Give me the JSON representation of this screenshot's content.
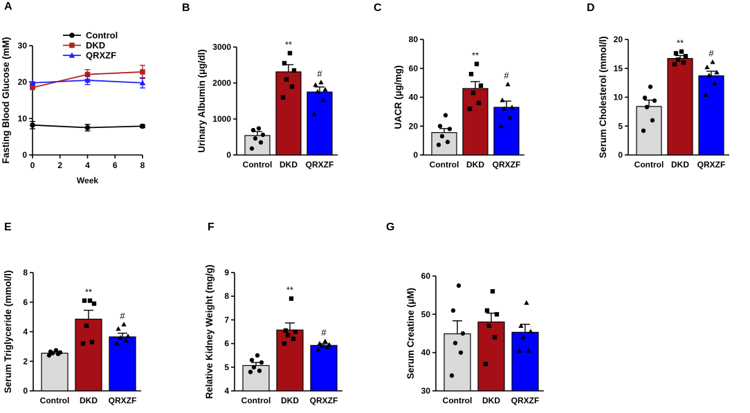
{
  "colors": {
    "control": "#d9d9d9",
    "dkd": "#a50f15",
    "qrxzf": "#0000ff",
    "axis": "#000000",
    "line_control": "#000000",
    "line_dkd": "#b22222",
    "line_qrxzf": "#1f1fff"
  },
  "chart_data": [
    {
      "panel": "A",
      "type": "line",
      "ylabel": "Fasting Blood Glucose (mM)",
      "xlabel": "Week",
      "x": [
        0,
        4,
        8
      ],
      "xticks": [
        "0",
        "2",
        "4",
        "6",
        "8"
      ],
      "xlim": [
        0,
        8
      ],
      "ylim": [
        0,
        30
      ],
      "yticks": [
        "0",
        "10",
        "20",
        "30"
      ],
      "series": [
        {
          "name": "Control",
          "marker": "circle",
          "color_key": "line_control",
          "values": [
            8.2,
            7.5,
            7.9
          ],
          "errors": [
            1.0,
            0.9,
            0.4
          ]
        },
        {
          "name": "DKD",
          "marker": "square",
          "color_key": "line_dkd",
          "values": [
            18.5,
            22.1,
            22.8
          ],
          "errors": [
            0.4,
            1.3,
            1.8
          ]
        },
        {
          "name": "QRXZF",
          "marker": "triangle",
          "color_key": "line_qrxzf",
          "values": [
            19.8,
            20.5,
            19.8
          ],
          "errors": [
            0.3,
            1.2,
            1.4
          ]
        }
      ]
    },
    {
      "panel": "B",
      "type": "bar",
      "ylabel": "Urinary Albumin (μg/dl)",
      "categories": [
        "Control",
        "DKD",
        "QRXZF"
      ],
      "values": [
        540,
        2310,
        1750
      ],
      "errors": [
        110,
        200,
        140
      ],
      "points": [
        [
          180,
          350,
          460,
          560,
          690,
          740
        ],
        [
          1600,
          1900,
          2100,
          2350,
          2550,
          2830
        ],
        [
          1140,
          1530,
          1760,
          1820,
          1950,
          2020
        ]
      ],
      "annotations": [
        "",
        "**",
        "#"
      ],
      "ylim": [
        0,
        3000
      ],
      "yticks": [
        "0",
        "1000",
        "2000",
        "3000"
      ]
    },
    {
      "panel": "C",
      "type": "bar",
      "ylabel": "UACR (μg/mg)",
      "categories": [
        "Control",
        "DKD",
        "QRXZF"
      ],
      "values": [
        15.5,
        46,
        33
      ],
      "errors": [
        2.8,
        4.8,
        4.3
      ],
      "points": [
        [
          7,
          9,
          13,
          18,
          20,
          27.5
        ],
        [
          32,
          36,
          43,
          48,
          56,
          63
        ],
        [
          20,
          26,
          32,
          33,
          38,
          49
        ]
      ],
      "annotations": [
        "",
        "**",
        "#"
      ],
      "ylim": [
        0,
        80
      ],
      "yticks": [
        "0",
        "20",
        "40",
        "60",
        "80"
      ]
    },
    {
      "panel": "D",
      "type": "bar",
      "ylabel": "Serum Cholesterol (mmol/l)",
      "categories": [
        "Control",
        "DKD",
        "QRXZF"
      ],
      "values": [
        8.4,
        16.7,
        13.7
      ],
      "errors": [
        1.1,
        0.5,
        0.8
      ],
      "points": [
        [
          4.2,
          6.0,
          8.3,
          9.4,
          9.9,
          11.8
        ],
        [
          15.7,
          16.0,
          16.5,
          17.1,
          17.6,
          17.9
        ],
        [
          10.4,
          12.4,
          13.8,
          14.3,
          15.2,
          16.1
        ]
      ],
      "annotations": [
        "",
        "**",
        "#"
      ],
      "ylim": [
        0,
        20
      ],
      "yticks": [
        "0",
        "5",
        "10",
        "15",
        "20"
      ]
    },
    {
      "panel": "E",
      "type": "bar",
      "ylabel": "Serum Triglyceride (mmol/l)",
      "categories": [
        "Control",
        "DKD",
        "QRXZF"
      ],
      "values": [
        2.55,
        4.85,
        3.65
      ],
      "errors": [
        0.1,
        0.6,
        0.25
      ],
      "points": [
        [
          2.4,
          2.5,
          2.55,
          2.6,
          2.65,
          2.75
        ],
        [
          3.2,
          3.3,
          4.4,
          5.9,
          6.1,
          6.1
        ],
        [
          3.2,
          3.4,
          3.6,
          3.7,
          4.2,
          4.5
        ]
      ],
      "annotations": [
        "",
        "**",
        "#"
      ],
      "ylim": [
        0,
        8
      ],
      "yticks": [
        "0",
        "2",
        "4",
        "6",
        "8"
      ]
    },
    {
      "panel": "F",
      "type": "bar",
      "ylabel": "Relative Kidney Weight (mg/g)",
      "categories": [
        "Control",
        "DKD",
        "QRXZF"
      ],
      "values": [
        5.07,
        6.57,
        5.92
      ],
      "errors": [
        0.13,
        0.3,
        0.07
      ],
      "points": [
        [
          4.8,
          4.85,
          5.0,
          5.2,
          5.3,
          5.5
        ],
        [
          6.0,
          6.2,
          6.35,
          6.5,
          6.55,
          7.9
        ],
        [
          5.75,
          5.85,
          5.9,
          5.95,
          6.0,
          6.1
        ]
      ],
      "annotations": [
        "",
        "**",
        "#"
      ],
      "ylim": [
        4,
        9
      ],
      "yticks": [
        "4",
        "5",
        "6",
        "7",
        "8",
        "9"
      ]
    },
    {
      "panel": "G",
      "type": "bar",
      "ylabel": "Serum Creatine (μM)",
      "categories": [
        "Control",
        "DKD",
        "QRXZF"
      ],
      "values": [
        44.9,
        48.0,
        45.3
      ],
      "errors": [
        3.4,
        2.3,
        2.1
      ],
      "points": [
        [
          34,
          40,
          42.5,
          45,
          51,
          57.5
        ],
        [
          37,
          44,
          47,
          50,
          51,
          56
        ],
        [
          40.5,
          40.5,
          44,
          45.5,
          47,
          53
        ]
      ],
      "annotations": [
        "",
        "",
        ""
      ],
      "ylim": [
        30,
        60
      ],
      "yticks": [
        "30",
        "40",
        "50",
        "60"
      ]
    }
  ]
}
